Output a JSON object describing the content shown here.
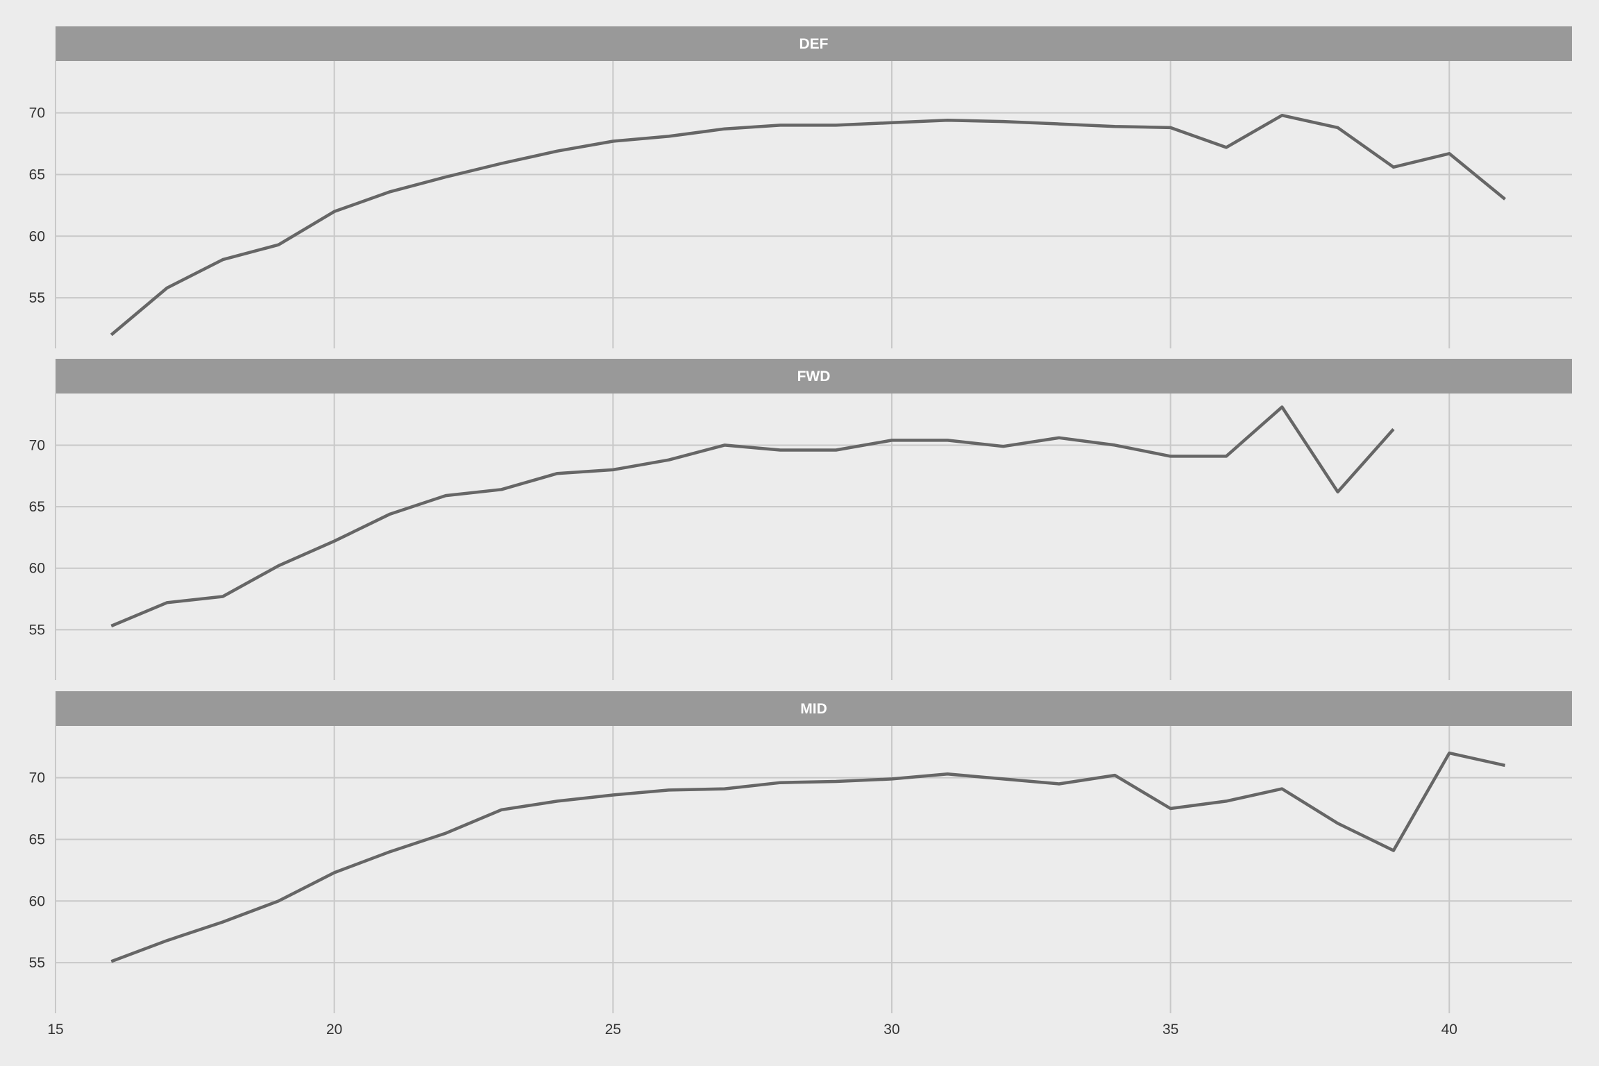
{
  "chart_data": {
    "type": "line",
    "facet_layout": "stacked",
    "grid": true,
    "colors": {
      "background": "#ececec",
      "strip": "#999999",
      "strip_text": "#ffffff",
      "grid": "#c8c8c8",
      "line": "#666666",
      "tick_text": "#333333"
    },
    "xlim": [
      15,
      42.2
    ],
    "x_ticks": [
      15,
      20,
      25,
      30,
      35,
      40
    ],
    "ylim": [
      50.9,
      74.2
    ],
    "y_ticks": [
      55,
      60,
      65,
      70
    ],
    "panels": [
      {
        "label": "DEF",
        "x": [
          16,
          17,
          18,
          19,
          20,
          21,
          22,
          23,
          24,
          25,
          26,
          27,
          28,
          29,
          30,
          31,
          32,
          33,
          34,
          35,
          36,
          37,
          38,
          39,
          40,
          41
        ],
        "y": [
          52.0,
          55.8,
          58.1,
          59.3,
          62.0,
          63.6,
          64.8,
          65.9,
          66.9,
          67.7,
          68.1,
          68.7,
          69.0,
          69.0,
          69.2,
          69.4,
          69.3,
          69.1,
          68.9,
          68.8,
          67.2,
          69.8,
          68.8,
          65.6,
          66.7,
          63.0
        ]
      },
      {
        "label": "FWD",
        "x": [
          16,
          17,
          18,
          19,
          20,
          21,
          22,
          23,
          24,
          25,
          26,
          27,
          28,
          29,
          30,
          31,
          32,
          33,
          34,
          35,
          36,
          37,
          38,
          39
        ],
        "y": [
          55.3,
          57.2,
          57.7,
          60.2,
          62.2,
          64.4,
          65.9,
          66.4,
          67.7,
          68.0,
          68.8,
          70.0,
          69.6,
          69.6,
          70.4,
          70.4,
          69.9,
          70.6,
          70.0,
          69.1,
          69.1,
          73.1,
          66.2,
          71.3
        ]
      },
      {
        "label": "MID",
        "x": [
          16,
          17,
          18,
          19,
          20,
          21,
          22,
          23,
          24,
          25,
          26,
          27,
          28,
          29,
          30,
          31,
          32,
          33,
          34,
          35,
          36,
          37,
          38,
          39,
          40,
          41
        ],
        "y": [
          55.1,
          56.8,
          58.3,
          60.0,
          62.3,
          64.0,
          65.5,
          67.4,
          68.1,
          68.6,
          69.0,
          69.1,
          69.6,
          69.7,
          69.9,
          70.3,
          69.9,
          69.5,
          70.2,
          67.5,
          68.1,
          69.1,
          66.3,
          64.1,
          72.0,
          71.0
        ]
      }
    ]
  }
}
